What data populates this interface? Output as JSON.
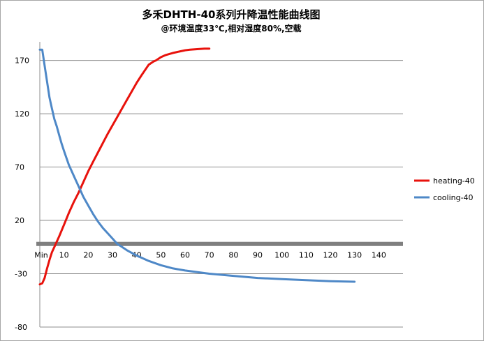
{
  "chart_data": {
    "type": "line",
    "title": "多禾DHTH-40系列升降温性能曲线图",
    "subtitle": "@环境温度33℃,相对湿度80%,空载",
    "xlabel": "",
    "ylabel": "",
    "x_tick_labels": [
      "Min",
      "10",
      "20",
      "30",
      "40",
      "50",
      "60",
      "70",
      "80",
      "90",
      "100",
      "110",
      "120",
      "130",
      "140"
    ],
    "x_ticks": [
      0,
      10,
      20,
      30,
      40,
      50,
      60,
      70,
      80,
      90,
      100,
      110,
      120,
      130,
      140
    ],
    "y_ticks": [
      170,
      120,
      70,
      20,
      -30,
      -80
    ],
    "xlim": [
      0,
      150
    ],
    "ylim": [
      -80,
      190
    ],
    "grid": true,
    "legend_position": "right",
    "zero_band_value": -2,
    "series": [
      {
        "name": "heating-40",
        "color": "#e8120c",
        "x": [
          0,
          1,
          2,
          3,
          4,
          5,
          6,
          8,
          10,
          12,
          14,
          16,
          18,
          20,
          22,
          25,
          28,
          30,
          32,
          35,
          38,
          40,
          42,
          45,
          47,
          48,
          50,
          52,
          55,
          58,
          60,
          62,
          65,
          68,
          70
        ],
        "y": [
          -40,
          -39,
          -34,
          -25,
          -17,
          -10,
          -5,
          5,
          16,
          27,
          37,
          46,
          56,
          66,
          75,
          88,
          101,
          109,
          117,
          129,
          141,
          149,
          156,
          166,
          169,
          170,
          173,
          175,
          177,
          178.5,
          179.5,
          180,
          180.5,
          181,
          181
        ]
      },
      {
        "name": "cooling-40",
        "color": "#4e88c7",
        "x": [
          0,
          1,
          2,
          3,
          4,
          5,
          6,
          7,
          8,
          9,
          10,
          12,
          14,
          16,
          18,
          20,
          22,
          24,
          26,
          28,
          30,
          32,
          34,
          36,
          40,
          45,
          50,
          55,
          60,
          70,
          80,
          90,
          100,
          110,
          120,
          130
        ],
        "y": [
          180,
          180,
          165,
          150,
          135,
          125,
          115,
          108,
          100,
          92,
          85,
          72,
          62,
          52,
          42,
          34,
          26,
          19,
          13,
          8,
          3,
          -2,
          -5,
          -8,
          -13,
          -18,
          -22,
          -25,
          -27,
          -30,
          -32,
          -34,
          -35,
          -36,
          -37,
          -37.5
        ]
      }
    ]
  }
}
